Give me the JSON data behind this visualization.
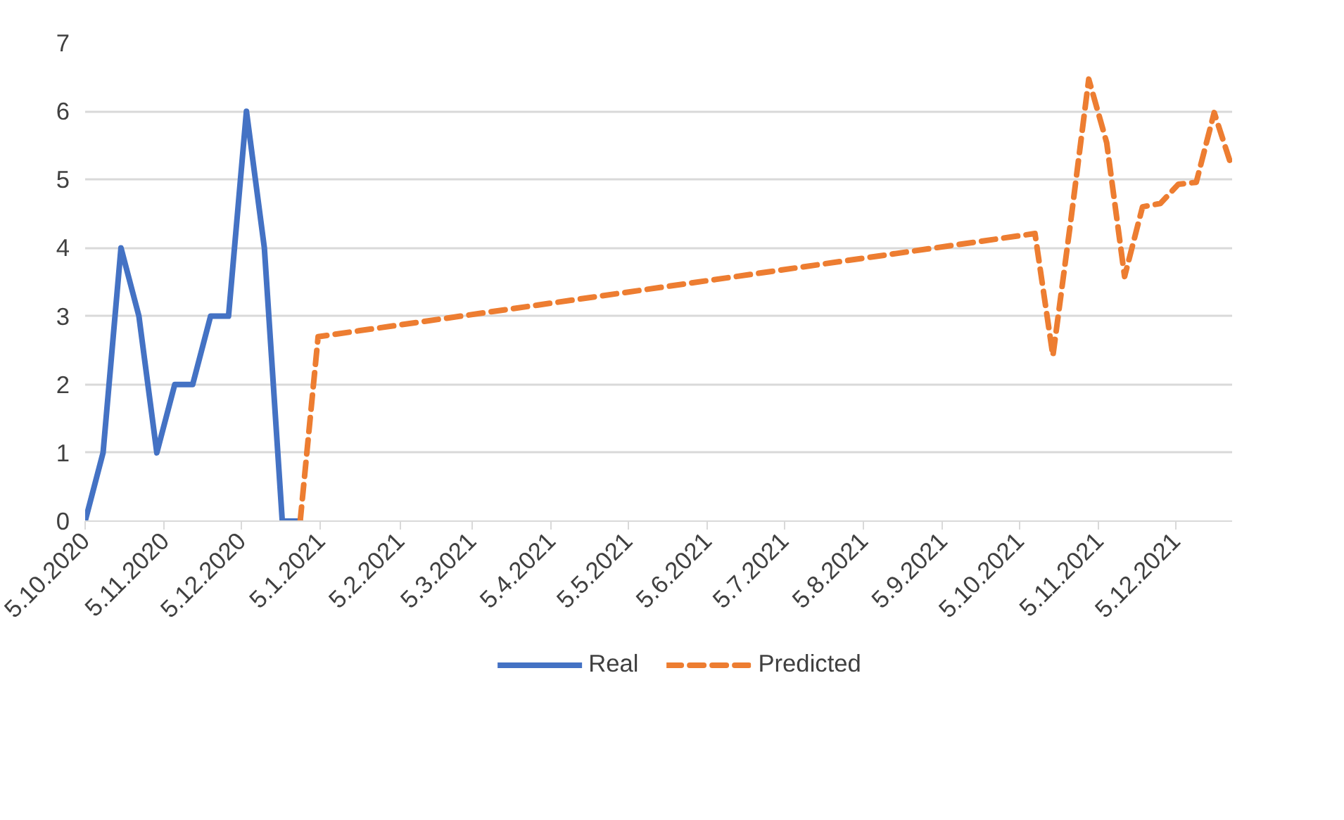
{
  "chart_data": {
    "type": "line",
    "ylim": [
      0,
      7
    ],
    "yticks": [
      0,
      1,
      2,
      3,
      4,
      5,
      6,
      7
    ],
    "xlim": [
      "2020-10-05",
      "2021-12-27"
    ],
    "xticks": [
      {
        "value": "2020-10-05",
        "label": "5.10.2020"
      },
      {
        "value": "2020-11-05",
        "label": "5.11.2020"
      },
      {
        "value": "2020-12-05",
        "label": "5.12.2020"
      },
      {
        "value": "2021-01-05",
        "label": "5.1.2021"
      },
      {
        "value": "2021-02-05",
        "label": "5.2.2021"
      },
      {
        "value": "2021-03-05",
        "label": "5.3.2021"
      },
      {
        "value": "2021-04-05",
        "label": "5.4.2021"
      },
      {
        "value": "2021-05-05",
        "label": "5.5.2021"
      },
      {
        "value": "2021-06-05",
        "label": "5.6.2021"
      },
      {
        "value": "2021-07-05",
        "label": "5.7.2021"
      },
      {
        "value": "2021-08-05",
        "label": "5.8.2021"
      },
      {
        "value": "2021-09-05",
        "label": "5.9.2021"
      },
      {
        "value": "2021-10-05",
        "label": "5.10.2021"
      },
      {
        "value": "2021-11-05",
        "label": "5.11.2021"
      },
      {
        "value": "2021-12-05",
        "label": "5.12.2021"
      }
    ],
    "grid": "y",
    "legend": "bottom",
    "marker": "none",
    "series": [
      {
        "name": "Real",
        "color": "#4472c4",
        "line_style": "solid",
        "x": [
          "2020-10-05",
          "2020-10-12",
          "2020-10-19",
          "2020-10-26",
          "2020-11-02",
          "2020-11-09",
          "2020-11-16",
          "2020-11-23",
          "2020-11-30",
          "2020-12-07",
          "2020-12-14",
          "2020-12-21",
          "2020-12-28"
        ],
        "values": [
          0,
          1,
          4,
          3,
          1,
          2,
          2,
          3,
          3,
          6,
          4,
          0,
          0
        ]
      },
      {
        "name": "Predicted",
        "color": "#ed7d31",
        "line_style": "dashed",
        "x": [
          "2020-12-28",
          "2021-01-04",
          "2021-10-11",
          "2021-10-18",
          "2021-10-25",
          "2021-11-01",
          "2021-11-08",
          "2021-11-15",
          "2021-11-22",
          "2021-11-29",
          "2021-12-06",
          "2021-12-13",
          "2021-12-20",
          "2021-12-27"
        ],
        "values": [
          0,
          2.7,
          4.21,
          2.42,
          4.4,
          6.47,
          5.54,
          3.58,
          4.6,
          4.65,
          4.93,
          4.96,
          5.98,
          5.17
        ]
      }
    ]
  }
}
